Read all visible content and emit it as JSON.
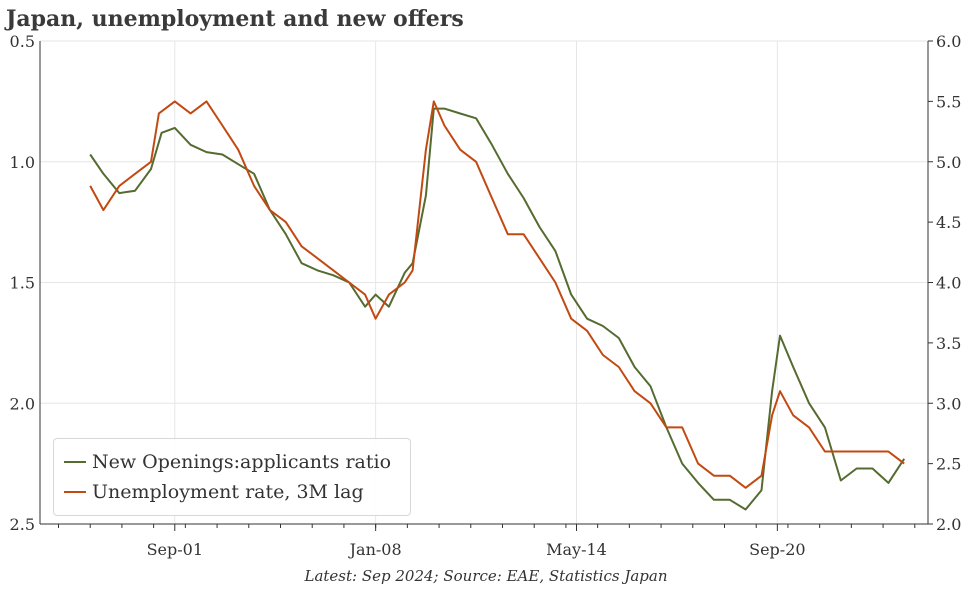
{
  "title": "Japan, unemployment and new offers",
  "source_note": "Latest: Sep 2024; Source: EAE, Statistics Japan",
  "colors": {
    "series_offers": "#556b2f",
    "series_unemp": "#c24a12",
    "grid": "#e6e6e6",
    "axis": "#333333"
  },
  "legend": {
    "placement": "bottom-left",
    "items": [
      {
        "label": "New Openings:applicants ratio",
        "color": "#556b2f"
      },
      {
        "label": "Unemployment rate, 3M lag",
        "color": "#c24a12"
      }
    ]
  },
  "chart_data": {
    "type": "line",
    "title": "Japan, unemployment and new offers",
    "grid": true,
    "x_range": [
      "1997-06",
      "2025-06"
    ],
    "x_ticks": [
      "Sep-01",
      "Jan-08",
      "May-14",
      "Sep-20"
    ],
    "y_left": {
      "inverted": true,
      "ylim": [
        0.5,
        2.5
      ],
      "ticks": [
        "0.5",
        "1.0",
        "1.5",
        "2.0",
        "2.5"
      ]
    },
    "y_right": {
      "inverted": false,
      "ylim": [
        2.0,
        6.0
      ],
      "ticks": [
        "6.0",
        "5.5",
        "5.0",
        "4.5",
        "4.0",
        "3.5",
        "3.0",
        "2.5",
        "2.0"
      ]
    },
    "series": [
      {
        "name": "New Openings:applicants ratio",
        "axis": "left",
        "color": "#556b2f",
        "points": [
          [
            "1999-01",
            0.97
          ],
          [
            "1999-06",
            1.05
          ],
          [
            "1999-12",
            1.13
          ],
          [
            "2000-06",
            1.12
          ],
          [
            "2000-12",
            1.03
          ],
          [
            "2001-04",
            0.88
          ],
          [
            "2001-09",
            0.86
          ],
          [
            "2002-03",
            0.93
          ],
          [
            "2002-09",
            0.96
          ],
          [
            "2003-03",
            0.97
          ],
          [
            "2003-09",
            1.01
          ],
          [
            "2004-03",
            1.05
          ],
          [
            "2004-09",
            1.2
          ],
          [
            "2005-03",
            1.3
          ],
          [
            "2005-09",
            1.42
          ],
          [
            "2006-03",
            1.45
          ],
          [
            "2006-09",
            1.47
          ],
          [
            "2007-03",
            1.5
          ],
          [
            "2007-09",
            1.6
          ],
          [
            "2008-01",
            1.55
          ],
          [
            "2008-06",
            1.6
          ],
          [
            "2008-12",
            1.46
          ],
          [
            "2009-03",
            1.42
          ],
          [
            "2009-08",
            1.14
          ],
          [
            "2009-11",
            0.78
          ],
          [
            "2010-03",
            0.78
          ],
          [
            "2010-09",
            0.8
          ],
          [
            "2011-03",
            0.82
          ],
          [
            "2011-09",
            0.93
          ],
          [
            "2012-03",
            1.05
          ],
          [
            "2012-09",
            1.15
          ],
          [
            "2013-03",
            1.27
          ],
          [
            "2013-09",
            1.37
          ],
          [
            "2014-03",
            1.55
          ],
          [
            "2014-09",
            1.65
          ],
          [
            "2015-03",
            1.68
          ],
          [
            "2015-09",
            1.73
          ],
          [
            "2016-03",
            1.85
          ],
          [
            "2016-09",
            1.93
          ],
          [
            "2017-03",
            2.1
          ],
          [
            "2017-09",
            2.25
          ],
          [
            "2018-03",
            2.33
          ],
          [
            "2018-09",
            2.4
          ],
          [
            "2019-03",
            2.4
          ],
          [
            "2019-09",
            2.44
          ],
          [
            "2020-03",
            2.36
          ],
          [
            "2020-07",
            1.95
          ],
          [
            "2020-10",
            1.72
          ],
          [
            "2021-03",
            1.85
          ],
          [
            "2021-09",
            2.0
          ],
          [
            "2022-03",
            2.1
          ],
          [
            "2022-09",
            2.32
          ],
          [
            "2023-03",
            2.27
          ],
          [
            "2023-09",
            2.27
          ],
          [
            "2024-03",
            2.33
          ],
          [
            "2024-09",
            2.23
          ]
        ]
      },
      {
        "name": "Unemployment rate, 3M lag",
        "axis": "right",
        "color": "#c24a12",
        "points": [
          [
            "1999-01",
            4.8
          ],
          [
            "1999-06",
            4.6
          ],
          [
            "1999-12",
            4.8
          ],
          [
            "2000-06",
            4.9
          ],
          [
            "2000-12",
            5.0
          ],
          [
            "2001-03",
            5.4
          ],
          [
            "2001-09",
            5.5
          ],
          [
            "2002-03",
            5.4
          ],
          [
            "2002-09",
            5.5
          ],
          [
            "2003-03",
            5.3
          ],
          [
            "2003-09",
            5.1
          ],
          [
            "2004-03",
            4.8
          ],
          [
            "2004-09",
            4.6
          ],
          [
            "2005-03",
            4.5
          ],
          [
            "2005-09",
            4.3
          ],
          [
            "2006-03",
            4.2
          ],
          [
            "2006-09",
            4.1
          ],
          [
            "2007-03",
            4.0
          ],
          [
            "2007-09",
            3.9
          ],
          [
            "2008-01",
            3.7
          ],
          [
            "2008-06",
            3.9
          ],
          [
            "2008-12",
            4.0
          ],
          [
            "2009-03",
            4.1
          ],
          [
            "2009-08",
            5.1
          ],
          [
            "2009-11",
            5.5
          ],
          [
            "2010-03",
            5.3
          ],
          [
            "2010-09",
            5.1
          ],
          [
            "2011-03",
            5.0
          ],
          [
            "2011-09",
            4.7
          ],
          [
            "2012-03",
            4.4
          ],
          [
            "2012-09",
            4.4
          ],
          [
            "2013-03",
            4.2
          ],
          [
            "2013-09",
            4.0
          ],
          [
            "2014-03",
            3.7
          ],
          [
            "2014-09",
            3.6
          ],
          [
            "2015-03",
            3.4
          ],
          [
            "2015-09",
            3.3
          ],
          [
            "2016-03",
            3.1
          ],
          [
            "2016-09",
            3.0
          ],
          [
            "2017-03",
            2.8
          ],
          [
            "2017-09",
            2.8
          ],
          [
            "2018-03",
            2.5
          ],
          [
            "2018-09",
            2.4
          ],
          [
            "2019-03",
            2.4
          ],
          [
            "2019-09",
            2.3
          ],
          [
            "2020-03",
            2.4
          ],
          [
            "2020-07",
            2.9
          ],
          [
            "2020-10",
            3.1
          ],
          [
            "2021-03",
            2.9
          ],
          [
            "2021-09",
            2.8
          ],
          [
            "2022-03",
            2.6
          ],
          [
            "2022-09",
            2.6
          ],
          [
            "2023-03",
            2.6
          ],
          [
            "2023-09",
            2.6
          ],
          [
            "2024-03",
            2.6
          ],
          [
            "2024-09",
            2.5
          ]
        ]
      }
    ]
  }
}
